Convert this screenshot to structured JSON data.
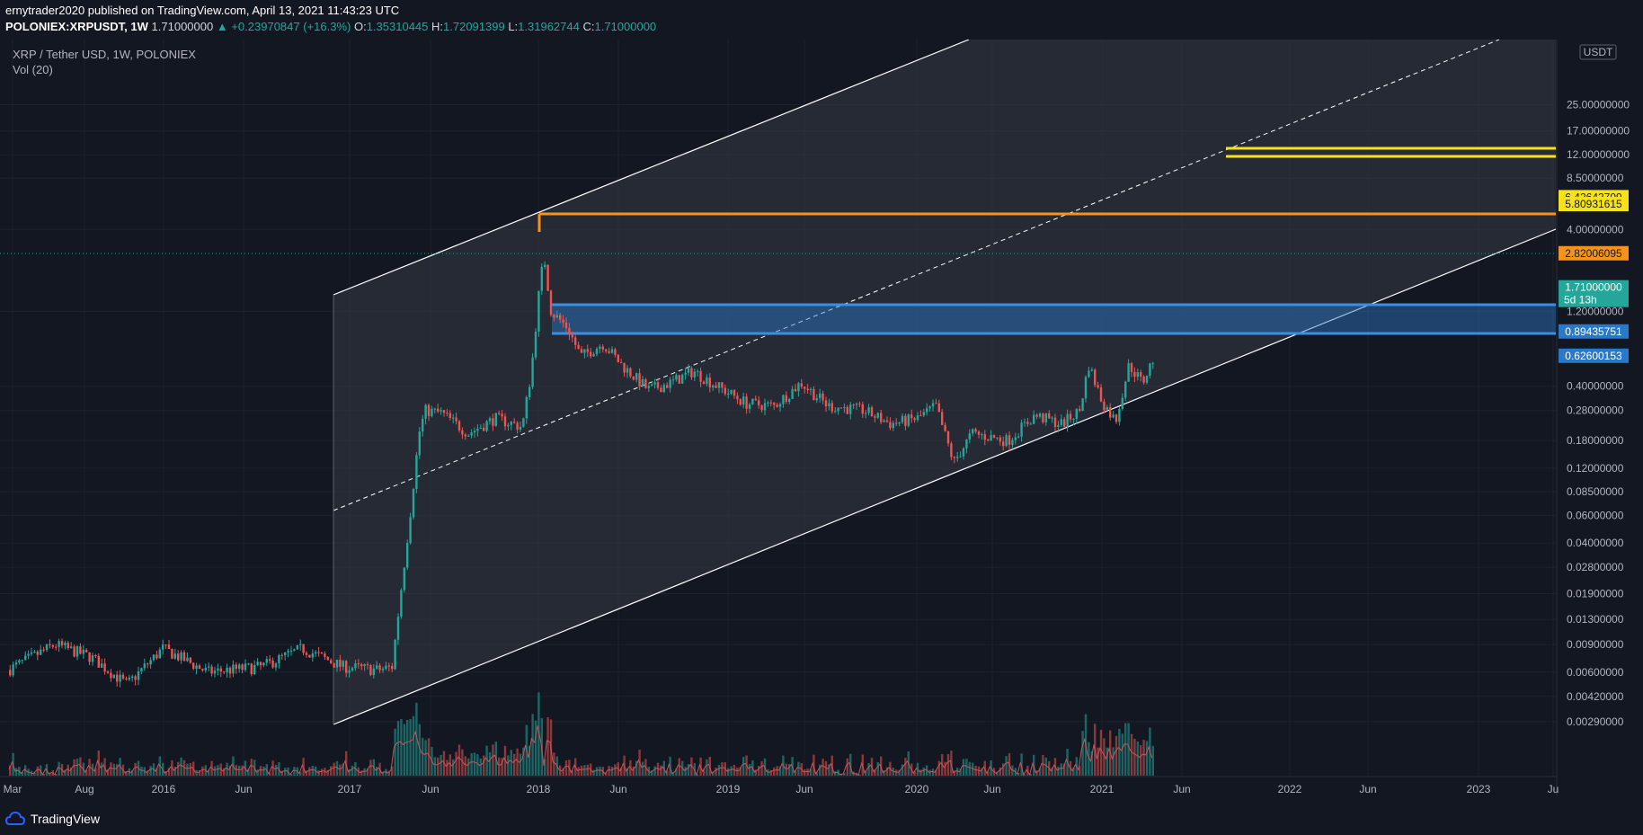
{
  "header": {
    "published_line": "ernytrader2020 published on TradingView.com, April 13, 2021 11:43:23 UTC",
    "symbol": "POLONIEX:XRPUSDT, 1W",
    "last": "1.71000000",
    "change": "▲ +0.23970847 (+16.3%)",
    "o_label": "O:",
    "o_val": "1.35310445",
    "h_label": "H:",
    "h_val": "1.72091399",
    "l_label": "L:",
    "l_val": "1.31962744",
    "c_label": "C:",
    "c_val": "1.71000000"
  },
  "legend": {
    "title": "XRP / Tether USD, 1W, POLONIEX",
    "volume": "Vol (20)"
  },
  "footer": {
    "brand": "TradingView"
  },
  "colors": {
    "background": "#131722",
    "up": "#26a69a",
    "down": "#ef5350",
    "orange": "#f7931a",
    "yellow": "#f5e21b",
    "blue": "#2a79c9",
    "last_price_tag": "#26a69a"
  },
  "chart_data": {
    "type": "candlestick",
    "scale": "log",
    "currency_label": "USDT",
    "y_ticks": [
      "25.00000000",
      "17.00000000",
      "12.00000000",
      "8.50000000",
      "4.00000000",
      "1.20000000",
      "0.40000000",
      "0.28000000",
      "0.18000000",
      "0.12000000",
      "0.08500000",
      "0.06000000",
      "0.04000000",
      "0.02800000",
      "0.01900000",
      "0.01300000",
      "0.00900000",
      "0.00600000",
      "0.00420000",
      "0.00290000"
    ],
    "x_ticks": [
      "Mar",
      "Aug",
      "2016",
      "Jun",
      "2017",
      "Jun",
      "2018",
      "Jun",
      "2019",
      "Jun",
      "2020",
      "Jun",
      "2021",
      "Jun",
      "2022",
      "Jun",
      "2023",
      "Ju"
    ],
    "price_tags": [
      {
        "value": "6.42642709",
        "kind": "yellow"
      },
      {
        "value": "5.80931615",
        "kind": "yellow"
      },
      {
        "value": "2.82006095",
        "kind": "orange"
      },
      {
        "value": "1.71000000",
        "kind": "last",
        "countdown": "5d 13h"
      },
      {
        "value": "0.89435751",
        "kind": "blue"
      },
      {
        "value": "0.62600153",
        "kind": "blue"
      }
    ],
    "horizontal_levels": [
      2.82006095,
      0.89435751,
      0.62600153,
      6.42642709,
      5.80931615
    ],
    "last_price": 1.71,
    "series": [
      {
        "name": "XRPUSDT",
        "dates": [
          "2015-06",
          "2016-01",
          "2016-06",
          "2017-01",
          "2017-03",
          "2017-05",
          "2017-08",
          "2017-12",
          "2018-01",
          "2018-04",
          "2018-07",
          "2018-09",
          "2019-01",
          "2019-06",
          "2019-10",
          "2020-01",
          "2020-03",
          "2020-06",
          "2020-09",
          "2020-11",
          "2021-01",
          "2021-02",
          "2021-03",
          "2021-04"
        ],
        "close": [
          0.009,
          0.0065,
          0.006,
          0.0063,
          0.02,
          0.3,
          0.21,
          1.1,
          2.8,
          0.62,
          0.45,
          0.33,
          0.35,
          0.43,
          0.28,
          0.22,
          0.14,
          0.2,
          0.24,
          0.6,
          0.24,
          0.45,
          0.5,
          1.71
        ]
      }
    ],
    "volume": "Vol (20)"
  }
}
